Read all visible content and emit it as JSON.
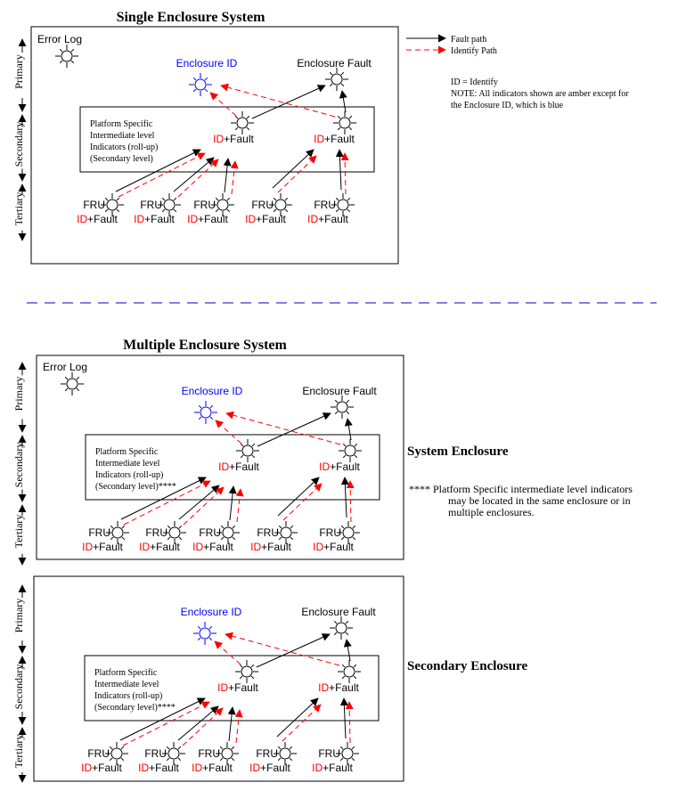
{
  "colors": {
    "fault_path": "#000000",
    "identify_path": "#ff0000",
    "enclosure_id": "#0000ff",
    "separator": "#0000cc"
  },
  "legend": {
    "fault_path": "Fault path",
    "identify_path": "Identify Path"
  },
  "notes": {
    "id_def": "ID = Identify",
    "note_line1": "NOTE: All indicators shown are amber except for",
    "note_line2": "the Enclosure ID, which is blue"
  },
  "footnote": {
    "line1": "**** Platform Specific intermediate level indicators",
    "line2": "may be located in the same enclosure or in",
    "line3": "multiple enclosures."
  },
  "levels": {
    "primary": "Primary",
    "secondary": "Secondary",
    "tertiary": "Tertiary"
  },
  "labels": {
    "error_log": "Error Log",
    "enclosure_id": "Enclosure ID",
    "enclosure_fault": "Enclosure Fault",
    "fru": "FRU",
    "id": "ID",
    "plus_fault": "+Fault"
  },
  "sections": [
    {
      "title": "Single Enclosure System",
      "platform_text": [
        "Platform Specific",
        "Intermediate level",
        "Indicators (roll-up)",
        "(Secondary level)"
      ]
    },
    {
      "title": "Multiple Enclosure System",
      "side_label": "System Enclosure",
      "platform_text": [
        "Platform Specific",
        "Intermediate level",
        "Indicators (roll-up)",
        "(Secondary level)****"
      ]
    },
    {
      "side_label": "Secondary Enclosure",
      "platform_text": [
        "Platform Specific",
        "Intermediate level",
        "Indicators (roll-up)",
        "(Secondary level)****"
      ]
    }
  ]
}
